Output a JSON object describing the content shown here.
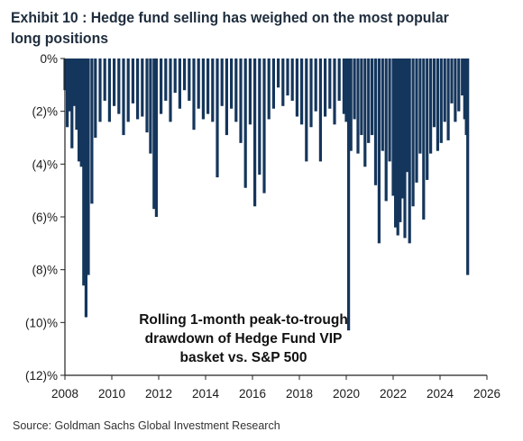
{
  "header": {
    "title": "Exhibit 10 : Hedge fund selling has weighed on the most popular long positions"
  },
  "footer": {
    "source": "Source: Goldman Sachs Global Investment Research"
  },
  "colors": {
    "bar": "#15365c",
    "axis": "#222222"
  },
  "chart_data": {
    "type": "bar",
    "title": "",
    "xlabel": "",
    "ylabel": "",
    "x_range": [
      2008,
      2026
    ],
    "ylim": [
      -12,
      0
    ],
    "x_ticks": [
      2008,
      2010,
      2012,
      2014,
      2016,
      2018,
      2020,
      2022,
      2024,
      2026
    ],
    "x_tick_labels": [
      "2008",
      "2010",
      "2012",
      "2014",
      "2016",
      "2018",
      "2020",
      "2022",
      "2024",
      "2026"
    ],
    "y_ticks": [
      0,
      -2,
      -4,
      -6,
      -8,
      -10,
      -12
    ],
    "y_tick_labels": [
      "0%",
      "(2)%",
      "(4)%",
      "(6)%",
      "(8)%",
      "(10)%",
      "(12)%"
    ],
    "annotation": [
      "Rolling 1-month peak-to-trough",
      "drawdown of Hedge Fund VIP",
      "basket vs. S&P 500"
    ],
    "grid": false,
    "legend": "none",
    "series": [
      {
        "x": [
          2008.0,
          2008.1,
          2008.2,
          2008.3,
          2008.4,
          2008.5,
          2008.6,
          2008.7,
          2008.8,
          2008.9,
          2009.0,
          2009.15,
          2009.3,
          2009.5,
          2009.7,
          2009.9,
          2010.1,
          2010.3,
          2010.5,
          2010.7,
          2010.9,
          2011.1,
          2011.3,
          2011.5,
          2011.65,
          2011.8,
          2011.9,
          2012.1,
          2012.3,
          2012.5,
          2012.7,
          2012.9,
          2013.1,
          2013.3,
          2013.5,
          2013.7,
          2013.9,
          2014.1,
          2014.3,
          2014.5,
          2014.7,
          2014.9,
          2015.1,
          2015.3,
          2015.5,
          2015.7,
          2015.9,
          2016.1,
          2016.3,
          2016.5,
          2016.7,
          2016.9,
          2017.1,
          2017.3,
          2017.5,
          2017.7,
          2017.9,
          2018.1,
          2018.3,
          2018.5,
          2018.7,
          2018.9,
          2019.1,
          2019.3,
          2019.5,
          2019.7,
          2019.9,
          2020.0,
          2020.1,
          2020.2,
          2020.35,
          2020.5,
          2020.65,
          2020.8,
          2020.95,
          2021.1,
          2021.25,
          2021.4,
          2021.55,
          2021.7,
          2021.85,
          2022.0,
          2022.1,
          2022.2,
          2022.3,
          2022.4,
          2022.5,
          2022.6,
          2022.7,
          2022.85,
          2023.0,
          2023.15,
          2023.3,
          2023.45,
          2023.6,
          2023.75,
          2023.9,
          2024.05,
          2024.2,
          2024.35,
          2024.5,
          2024.65,
          2024.8,
          2024.95,
          2025.05,
          2025.12,
          2025.18
        ],
        "values": [
          -1.2,
          -2.6,
          -2.0,
          -3.4,
          -1.8,
          -2.7,
          -3.9,
          -4.1,
          -8.6,
          -9.8,
          -8.2,
          -5.5,
          -3.0,
          -2.4,
          -1.6,
          -2.4,
          -1.8,
          -2.1,
          -2.9,
          -2.4,
          -1.7,
          -2.3,
          -2.2,
          -2.8,
          -3.6,
          -5.7,
          -6.0,
          -2.1,
          -1.6,
          -2.4,
          -1.3,
          -1.9,
          -1.2,
          -1.6,
          -2.7,
          -1.9,
          -2.3,
          -2.1,
          -2.4,
          -4.5,
          -1.8,
          -2.9,
          -1.9,
          -2.4,
          -3.2,
          -4.9,
          -2.5,
          -5.6,
          -4.4,
          -5.1,
          -2.3,
          -1.9,
          -1.1,
          -1.8,
          -1.4,
          -1.6,
          -2.2,
          -2.5,
          -3.9,
          -2.6,
          -2.0,
          -3.9,
          -2.2,
          -1.9,
          -2.5,
          -1.6,
          -2.1,
          -2.4,
          -10.3,
          -3.5,
          -2.3,
          -3.6,
          -2.9,
          -4.1,
          -3.2,
          -2.9,
          -4.8,
          -7.0,
          -3.5,
          -5.4,
          -3.9,
          -5.2,
          -6.4,
          -6.7,
          -6.2,
          -5.3,
          -6.8,
          -4.3,
          -7.0,
          -5.6,
          -4.7,
          -3.6,
          -6.1,
          -4.6,
          -3.6,
          -2.6,
          -3.5,
          -3.2,
          -2.4,
          -3.1,
          -1.7,
          -2.4,
          -2.0,
          -1.4,
          -2.3,
          -2.9,
          -8.2
        ]
      }
    ]
  }
}
